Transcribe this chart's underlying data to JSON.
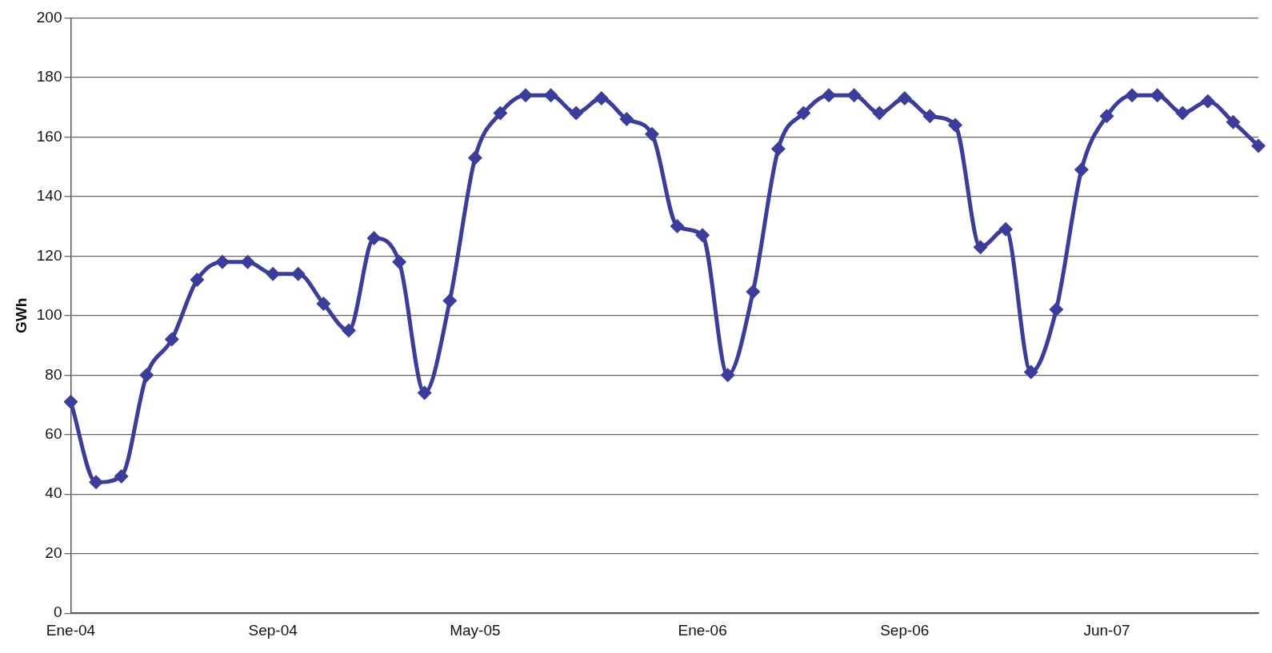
{
  "chart_data": {
    "type": "line",
    "ylabel": "GWh",
    "categories": [
      "Ene-04",
      null,
      null,
      null,
      null,
      null,
      null,
      null,
      "Sep-04",
      null,
      null,
      null,
      null,
      null,
      null,
      null,
      "May-05",
      null,
      null,
      null,
      null,
      null,
      null,
      null,
      null,
      "Ene-06",
      null,
      null,
      null,
      null,
      null,
      null,
      null,
      "Sep-06",
      null,
      null,
      null,
      null,
      null,
      null,
      null,
      "Jun-07",
      null,
      null,
      null,
      null,
      null,
      null
    ],
    "series": [
      {
        "color": "#3a3d9c",
        "values": [
          71,
          44,
          46,
          80,
          92,
          112,
          118,
          118,
          114,
          114,
          104,
          95,
          126,
          118,
          74,
          105,
          153,
          168,
          174,
          174,
          168,
          173,
          166,
          161,
          130,
          127,
          80,
          108,
          156,
          168,
          174,
          174,
          168,
          173,
          167,
          164,
          123,
          129,
          81,
          102,
          149,
          167,
          174,
          174,
          168,
          172,
          165,
          157
        ]
      }
    ],
    "ylim": [
      0,
      200
    ],
    "yticks": [
      0,
      20,
      40,
      60,
      80,
      100,
      120,
      140,
      160,
      180,
      200
    ],
    "grid": "y",
    "legend": false,
    "marker": "diamond",
    "line_style": "solid"
  }
}
